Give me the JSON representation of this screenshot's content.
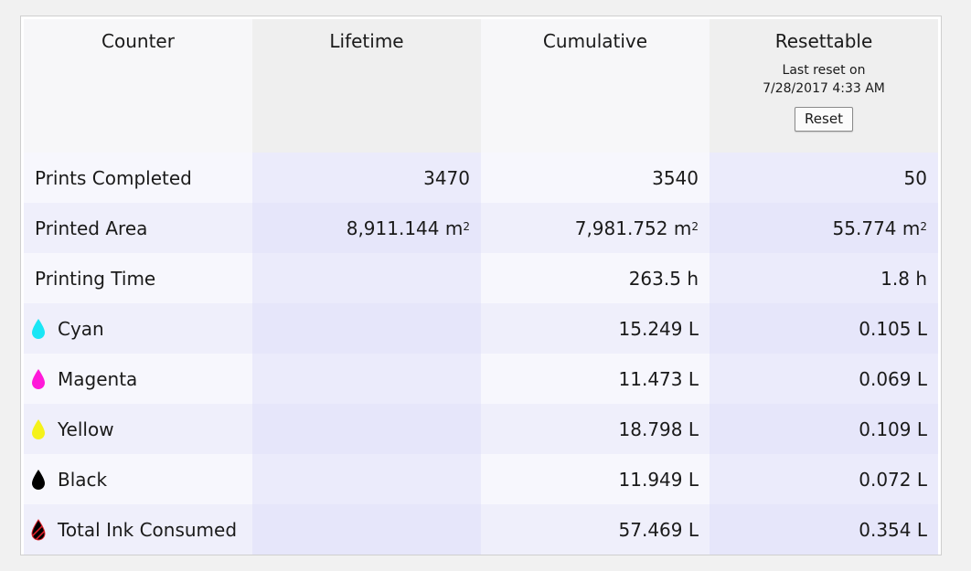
{
  "header": {
    "counter": "Counter",
    "lifetime": "Lifetime",
    "cumulative": "Cumulative",
    "resettable": "Resettable",
    "last_reset_label": "Last reset on",
    "last_reset_date": "7/28/2017 4:33 AM",
    "reset_button": "Reset"
  },
  "rows": [
    {
      "label": "Prints Completed",
      "icon": "",
      "lifetime": "3470",
      "cumulative": "3540",
      "resettable": "50"
    },
    {
      "label": "Printed Area",
      "icon": "",
      "lifetime": "8,911.144 m",
      "cumulative": "7,981.752 m",
      "resettable": "55.774 m",
      "unit_sup": "2"
    },
    {
      "label": "Printing Time",
      "icon": "",
      "lifetime": "",
      "cumulative": "263.5 h",
      "resettable": "1.8 h"
    },
    {
      "label": "Cyan",
      "icon": "cyan-ink-drop-icon",
      "lifetime": "",
      "cumulative": "15.249 L",
      "resettable": "0.105 L"
    },
    {
      "label": "Magenta",
      "icon": "magenta-ink-drop-icon",
      "lifetime": "",
      "cumulative": "11.473 L",
      "resettable": "0.069 L"
    },
    {
      "label": "Yellow",
      "icon": "yellow-ink-drop-icon",
      "lifetime": "",
      "cumulative": "18.798 L",
      "resettable": "0.109 L"
    },
    {
      "label": "Black",
      "icon": "black-ink-drop-icon",
      "lifetime": "",
      "cumulative": "11.949 L",
      "resettable": "0.072 L"
    },
    {
      "label": "Total Ink Consumed",
      "icon": "total-ink-drop-icon",
      "lifetime": "",
      "cumulative": "57.469 L",
      "resettable": "0.354 L"
    }
  ],
  "colors": {
    "cyan": "#19e6f5",
    "magenta": "#ff19d9",
    "yellow": "#f5f21a",
    "black": "#000000",
    "total_stripe": "#e0202a"
  }
}
